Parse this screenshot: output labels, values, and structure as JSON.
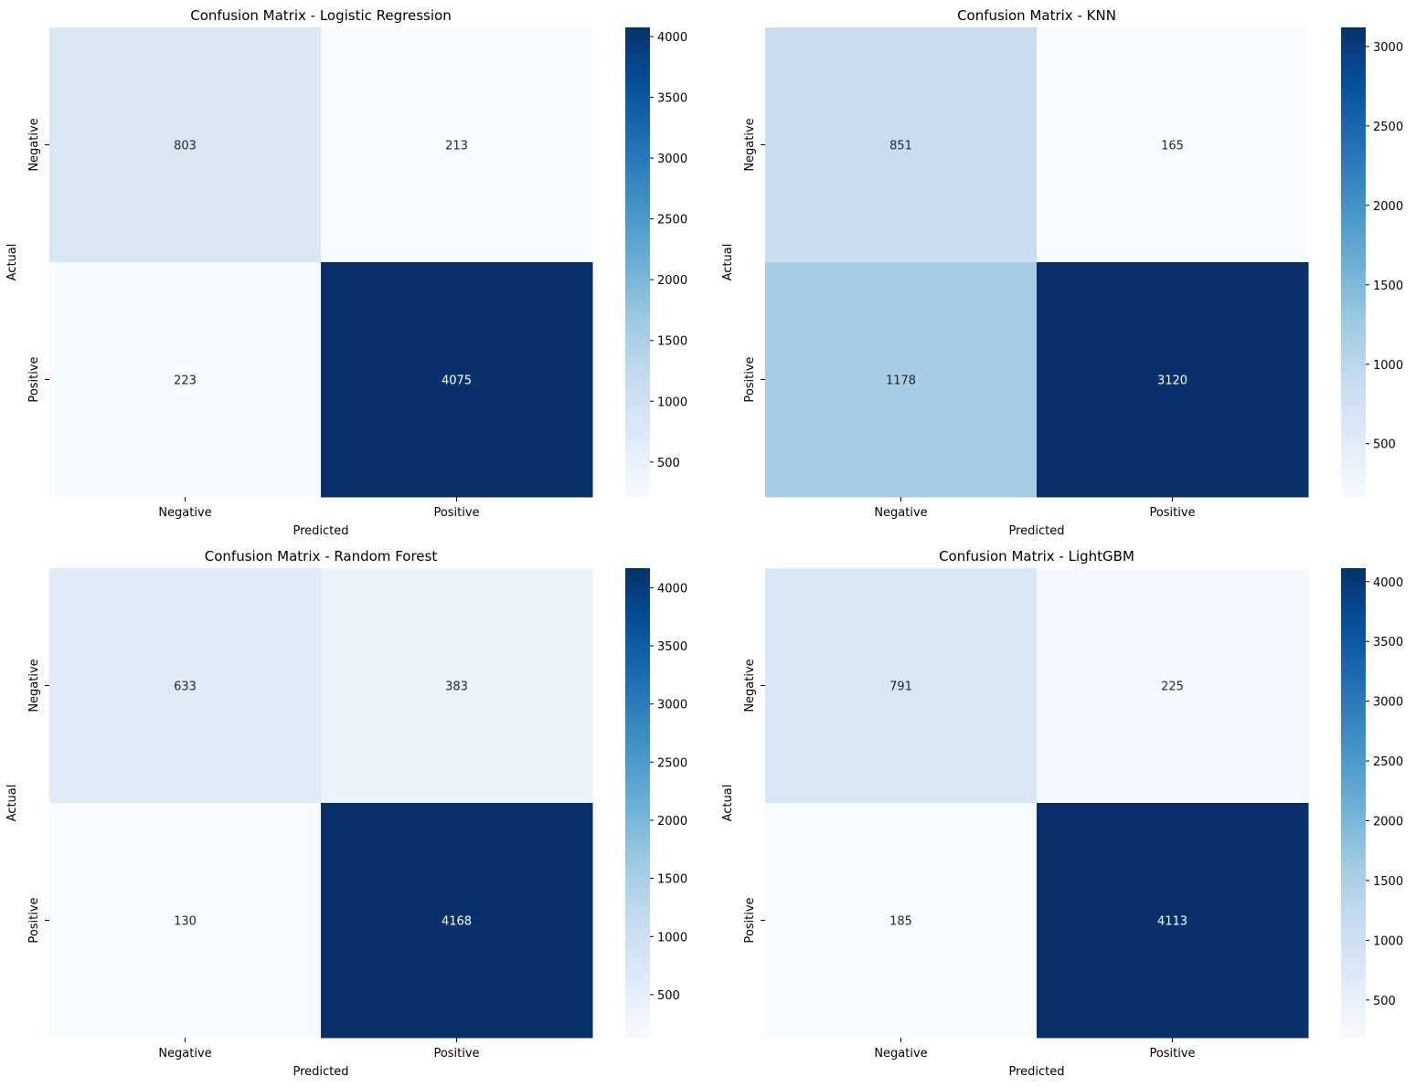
{
  "chart_data": [
    {
      "type": "heatmap",
      "title": "Confusion Matrix - Logistic Regression",
      "xlabel": "Predicted",
      "ylabel": "Actual",
      "x_categories": [
        "Negative",
        "Positive"
      ],
      "y_categories": [
        "Negative",
        "Positive"
      ],
      "values": [
        [
          803,
          213
        ],
        [
          223,
          4075
        ]
      ],
      "colormap": "Blues",
      "colorbar": {
        "range": [
          213,
          4075
        ],
        "ticks": [
          500,
          1000,
          1500,
          2000,
          2500,
          3000,
          3500,
          4000
        ]
      }
    },
    {
      "type": "heatmap",
      "title": "Confusion Matrix - KNN",
      "xlabel": "Predicted",
      "ylabel": "Actual",
      "x_categories": [
        "Negative",
        "Positive"
      ],
      "y_categories": [
        "Negative",
        "Positive"
      ],
      "values": [
        [
          851,
          165
        ],
        [
          1178,
          3120
        ]
      ],
      "colormap": "Blues",
      "colorbar": {
        "range": [
          165,
          3120
        ],
        "ticks": [
          500,
          1000,
          1500,
          2000,
          2500,
          3000
        ]
      }
    },
    {
      "type": "heatmap",
      "title": "Confusion Matrix - Random Forest",
      "xlabel": "Predicted",
      "ylabel": "Actual",
      "x_categories": [
        "Negative",
        "Positive"
      ],
      "y_categories": [
        "Negative",
        "Positive"
      ],
      "values": [
        [
          633,
          383
        ],
        [
          130,
          4168
        ]
      ],
      "colormap": "Blues",
      "colorbar": {
        "range": [
          130,
          4168
        ],
        "ticks": [
          500,
          1000,
          1500,
          2000,
          2500,
          3000,
          3500,
          4000
        ]
      }
    },
    {
      "type": "heatmap",
      "title": "Confusion Matrix - LightGBM",
      "xlabel": "Predicted",
      "ylabel": "Actual",
      "x_categories": [
        "Negative",
        "Positive"
      ],
      "y_categories": [
        "Negative",
        "Positive"
      ],
      "values": [
        [
          791,
          225
        ],
        [
          185,
          4113
        ]
      ],
      "colormap": "Blues",
      "colorbar": {
        "range": [
          185,
          4113
        ],
        "ticks": [
          500,
          1000,
          1500,
          2000,
          2500,
          3000,
          3500,
          4000
        ]
      }
    }
  ]
}
